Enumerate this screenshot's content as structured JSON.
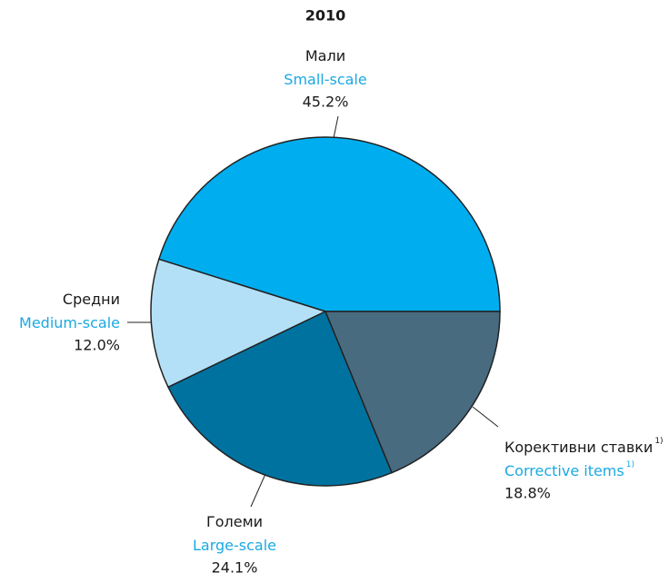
{
  "chart_data": {
    "type": "pie",
    "title": "2010",
    "categories_local": [
      "Мали",
      "Средни",
      "Големи",
      "Корективни ставки"
    ],
    "categories": [
      "Small-scale",
      "Medium-scale",
      "Large-scale",
      "Corrective items"
    ],
    "values": [
      45.2,
      12.0,
      24.1,
      18.8
    ],
    "value_labels": [
      "45.2%",
      "12.0%",
      "24.1%",
      "18.8%"
    ],
    "colors": [
      "#00aeef",
      "#b3e0f7",
      "#0072a0",
      "#486b80"
    ],
    "footnote_mark": "1)"
  }
}
